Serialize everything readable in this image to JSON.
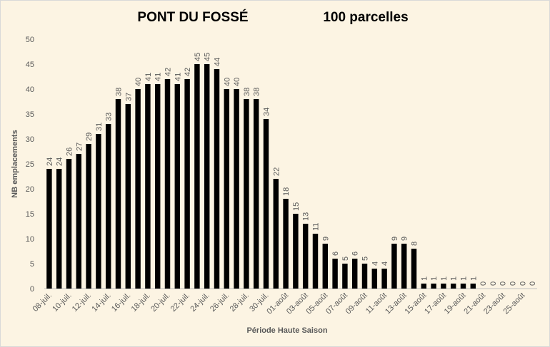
{
  "chart_data": {
    "type": "bar",
    "title": "PONT DU FOSSÉ",
    "subtitle": "100 parcelles",
    "x_label": "Période Haute Saison",
    "y_label": "NB emplacements",
    "categories": [
      "08-juil.",
      null,
      "10-juil.",
      null,
      "12-juil.",
      null,
      "14-juil.",
      null,
      "16-juil.",
      null,
      "18-juil.",
      null,
      "20-juil.",
      null,
      "22-juil.",
      null,
      "24-juil.",
      null,
      "26-juil.",
      null,
      "28-juil.",
      null,
      "30-juil.",
      null,
      "01-août",
      null,
      "03-août",
      null,
      "05-août",
      null,
      "07-août",
      null,
      "09-août",
      null,
      "11-août",
      null,
      "13-août",
      null,
      "15-août",
      null,
      "17-août",
      null,
      "19-août",
      null,
      "21-août",
      null,
      "23-août",
      null,
      "25-août",
      null
    ],
    "values": [
      24,
      24,
      26,
      27,
      29,
      31,
      33,
      38,
      37,
      40,
      41,
      41,
      42,
      41,
      42,
      45,
      45,
      44,
      40,
      40,
      38,
      38,
      34,
      22,
      18,
      15,
      13,
      11,
      9,
      6,
      5,
      6,
      5,
      4,
      4,
      9,
      9,
      8,
      1,
      1,
      1,
      1,
      1,
      1,
      0,
      0,
      0,
      0,
      0,
      0
    ],
    "color": "#000000",
    "ylim": [
      0,
      50
    ],
    "yticks": [
      0,
      5,
      10,
      15,
      20,
      25,
      30,
      35,
      40,
      45,
      50
    ],
    "grid": false
  }
}
